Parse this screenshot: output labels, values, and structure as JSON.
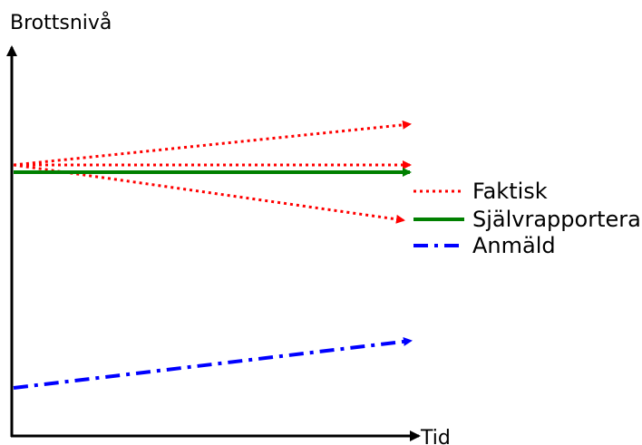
{
  "diagram": {
    "y_axis_label": "Brottsnivå",
    "x_axis_label": "Tid",
    "colors": {
      "faktisk": "#ff0000",
      "sjalvrapporterad": "#008000",
      "anmald": "#0000ff",
      "axis": "#000000"
    },
    "legend": [
      {
        "key": "faktisk",
        "label": "Faktisk",
        "style": "dotted"
      },
      {
        "key": "sjalvrapporterad",
        "label": "Självrapporterad",
        "style": "solid"
      },
      {
        "key": "anmald",
        "label": "Anmäld",
        "style": "dash-dot"
      }
    ]
  }
}
